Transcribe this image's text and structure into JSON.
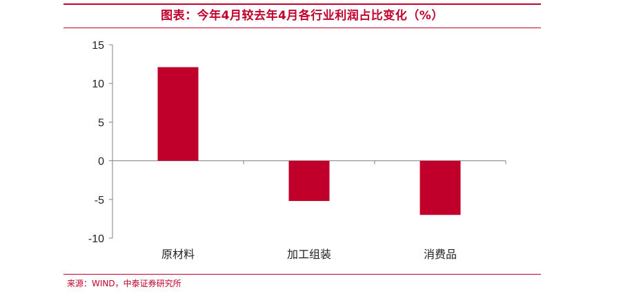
{
  "title": "图表：今年4月较去年4月各行业利润占比变化（%）",
  "source": "来源：WIND，中泰证券研究所",
  "colors": {
    "accent": "#c0002a",
    "bar": "#c0002a",
    "axis": "#808080"
  },
  "chart_data": {
    "type": "bar",
    "title": "",
    "xlabel": "",
    "ylabel": "",
    "categories": [
      "原材料",
      "加工组装",
      "消费品"
    ],
    "values": [
      12.1,
      -5.2,
      -7.0
    ],
    "ylim": [
      -10,
      15
    ],
    "yticks": [
      15,
      10,
      5,
      0,
      -5,
      -10
    ],
    "grid": false,
    "legend": "none"
  }
}
